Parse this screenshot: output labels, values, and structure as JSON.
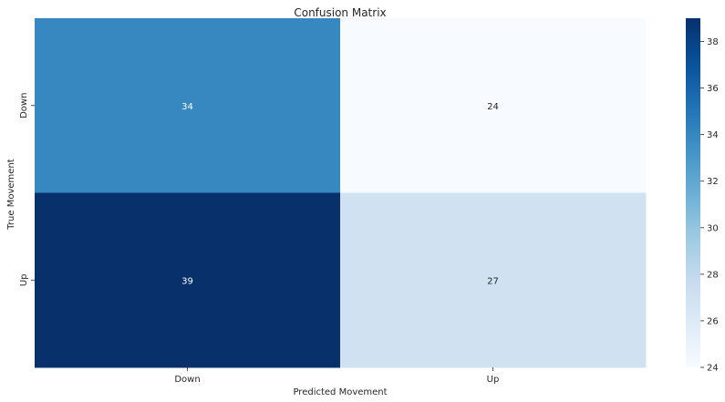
{
  "chart_data": {
    "type": "heatmap",
    "title": "Confusion Matrix",
    "xlabel": "Predicted Movement",
    "ylabel": "True Movement",
    "x_categories": [
      "Down",
      "Up"
    ],
    "y_categories": [
      "Down",
      "Up"
    ],
    "values": [
      [
        34,
        24
      ],
      [
        39,
        27
      ]
    ],
    "colormap": "Blues",
    "colorbar": {
      "range": [
        24,
        39
      ],
      "ticks": [
        "24",
        "26",
        "28",
        "30",
        "32",
        "34",
        "36",
        "38"
      ]
    },
    "grid": false,
    "annot": true
  }
}
